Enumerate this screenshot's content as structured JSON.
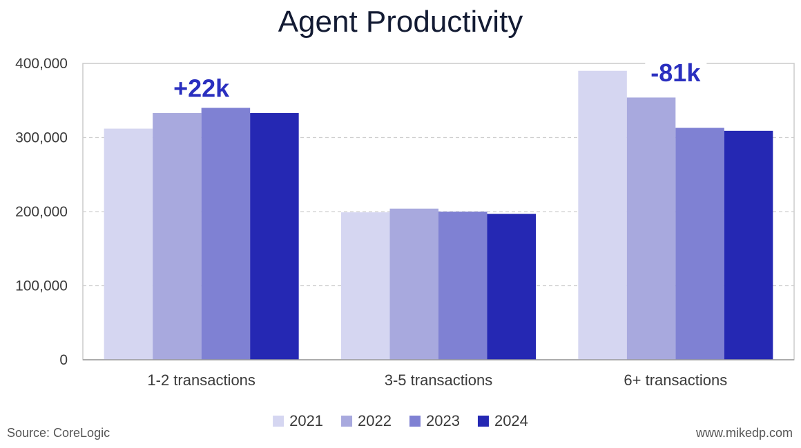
{
  "chart_data": {
    "type": "bar",
    "title": "Agent Productivity",
    "categories": [
      "1-2 transactions",
      "3-5 transactions",
      "6+ transactions"
    ],
    "series": [
      {
        "name": "2021",
        "color": "#d5d6f1",
        "values": [
          312000,
          199000,
          390000
        ]
      },
      {
        "name": "2022",
        "color": "#a8a9de",
        "values": [
          333000,
          204000,
          354000
        ]
      },
      {
        "name": "2023",
        "color": "#7f81d3",
        "values": [
          340000,
          200000,
          313000
        ]
      },
      {
        "name": "2024",
        "color": "#2528b3",
        "values": [
          333000,
          197000,
          309000
        ]
      }
    ],
    "ylim": [
      0,
      400000
    ],
    "yticks": [
      0,
      100000,
      200000,
      300000,
      400000
    ],
    "ytick_labels": [
      "0",
      "100,000",
      "200,000",
      "300,000",
      "400,000"
    ],
    "grid": true,
    "legend_position": "bottom-center",
    "annotations": [
      {
        "text": "+22k",
        "category": "1-2 transactions",
        "color": "#2a2fbf"
      },
      {
        "text": "-81k",
        "category": "6+ transactions",
        "color": "#2a2fbf"
      }
    ]
  },
  "footer": {
    "source": "Source: CoreLogic",
    "site": "www.mikedp.com"
  }
}
